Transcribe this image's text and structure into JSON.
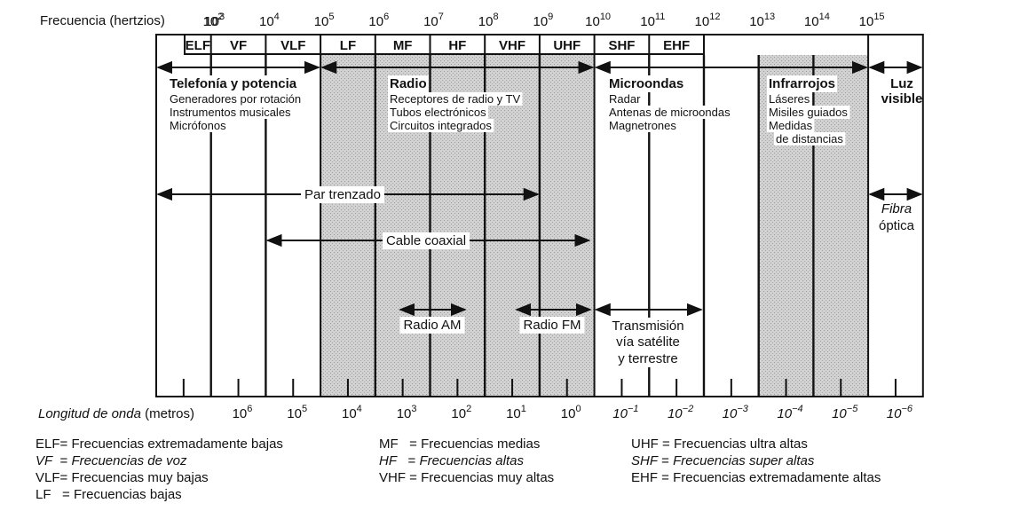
{
  "header": {
    "freq_label": "Frecuencia (hertzios)",
    "wave_label_italic": "Longitud de onda",
    "wave_label_unit": " (metros)"
  },
  "freq_ticks": [
    {
      "base": "10",
      "exp": "2"
    },
    {
      "base": "10",
      "exp": "3"
    },
    {
      "base": "10",
      "exp": "4"
    },
    {
      "base": "10",
      "exp": "5"
    },
    {
      "base": "10",
      "exp": "6"
    },
    {
      "base": "10",
      "exp": "7"
    },
    {
      "base": "10",
      "exp": "8"
    },
    {
      "base": "10",
      "exp": "9"
    },
    {
      "base": "10",
      "exp": "10"
    },
    {
      "base": "10",
      "exp": "11"
    },
    {
      "base": "10",
      "exp": "12"
    },
    {
      "base": "10",
      "exp": "13"
    },
    {
      "base": "10",
      "exp": "14"
    },
    {
      "base": "10",
      "exp": "15"
    }
  ],
  "wave_ticks": [
    {
      "base": "10",
      "exp": "6"
    },
    {
      "base": "10",
      "exp": "5"
    },
    {
      "base": "10",
      "exp": "4"
    },
    {
      "base": "10",
      "exp": "3"
    },
    {
      "base": "10",
      "exp": "2"
    },
    {
      "base": "10",
      "exp": "1"
    },
    {
      "base": "10",
      "exp": "0"
    },
    {
      "base": "10",
      "exp": "−1"
    },
    {
      "base": "10",
      "exp": "−2"
    },
    {
      "base": "10",
      "exp": "−3"
    },
    {
      "base": "10",
      "exp": "−4"
    },
    {
      "base": "10",
      "exp": "−5"
    },
    {
      "base": "10",
      "exp": "−6"
    }
  ],
  "bands": [
    "ELF",
    "VF",
    "VLF",
    "LF",
    "MF",
    "HF",
    "VHF",
    "UHF",
    "SHF",
    "EHF"
  ],
  "categories": [
    {
      "title": [
        "Telefonía y potencia"
      ],
      "items": [
        "Generadores por rotación",
        "Instrumentos musicales",
        "Micrófonos"
      ]
    },
    {
      "title": [
        "Radio"
      ],
      "items": [
        "Receptores de radio y TV",
        "Tubos electrónicos",
        "Circuitos integrados"
      ]
    },
    {
      "title": [
        "Microondas"
      ],
      "items": [
        "Radar",
        "Antenas de microondas",
        "Magnetrones"
      ]
    },
    {
      "title": [
        "Infrarrojos"
      ],
      "items": [
        "Láseres",
        "Misiles guiados",
        "Medidas",
        "de distancias"
      ]
    },
    {
      "title": [
        "Luz",
        "visible"
      ],
      "items": []
    }
  ],
  "media": {
    "twisted_pair": "Par trenzado",
    "coax": "Cable coaxial",
    "fiber": [
      "Fibra",
      "óptica"
    ],
    "radio_am": "Radio AM",
    "radio_fm": "Radio FM",
    "satellite": [
      "Transmisión",
      "vía satélite",
      "y terrestre"
    ]
  },
  "legend": [
    [
      {
        "abbr": "ELF",
        "sep": "= ",
        "text": "Frecuencias extremadamente bajas",
        "italic": false
      },
      {
        "abbr": "VF",
        "sep": "  = ",
        "text": "Frecuencias de voz",
        "italic": true
      },
      {
        "abbr": "VLF",
        "sep": "= ",
        "text": "Frecuencias muy bajas",
        "italic": false
      },
      {
        "abbr": "LF",
        "sep": "   = ",
        "text": "Frecuencias bajas",
        "italic": false
      }
    ],
    [
      {
        "abbr": "MF",
        "sep": "   = ",
        "text": "Frecuencias medias",
        "italic": false
      },
      {
        "abbr": "HF",
        "sep": "   = ",
        "text": "Frecuencias altas",
        "italic": true
      },
      {
        "abbr": "VHF",
        "sep": " = ",
        "text": "Frecuencias muy altas",
        "italic": false
      }
    ],
    [
      {
        "abbr": "UHF",
        "sep": " = ",
        "text": "Frecuencias ultra altas",
        "italic": false
      },
      {
        "abbr": "SHF",
        "sep": " = ",
        "text": "Frecuencias super altas",
        "italic": true
      },
      {
        "abbr": "EHF",
        "sep": " = ",
        "text": "Frecuencias extremadamente altas",
        "italic": false
      }
    ]
  ],
  "colors": {
    "shading": "#c4c4c4",
    "line": "#111111"
  }
}
